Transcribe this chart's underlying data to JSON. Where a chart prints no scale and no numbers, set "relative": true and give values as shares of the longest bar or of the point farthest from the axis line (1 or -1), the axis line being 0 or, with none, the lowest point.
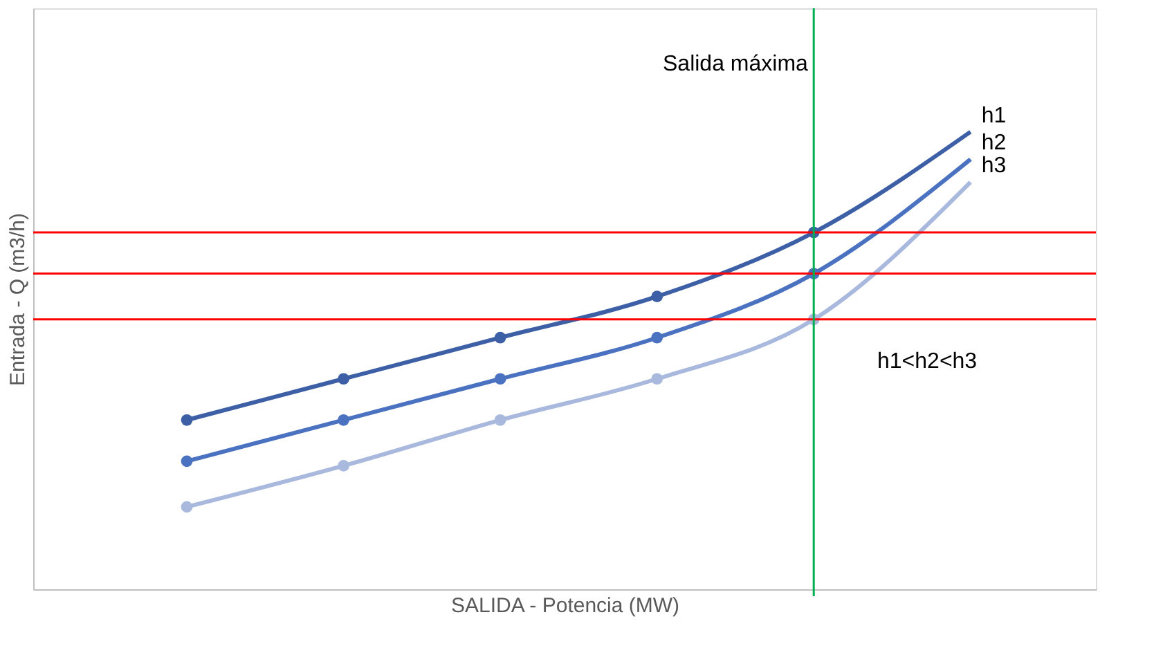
{
  "chart_data": {
    "type": "line",
    "relative": true,
    "xlabel": "SALIDA  - Potencia (MW)",
    "ylabel": "Entrada - Q (m3/h)",
    "categories": [
      null,
      null,
      null,
      null,
      null,
      null
    ],
    "series": [
      {
        "name": "h1",
        "color": "#3d5fa6",
        "values": [
          0.37,
          0.46,
          0.55,
          0.64,
          0.78,
          1.0
        ]
      },
      {
        "name": "h2",
        "color": "#4a72c0",
        "values": [
          0.28,
          0.37,
          0.46,
          0.55,
          0.69,
          0.94
        ]
      },
      {
        "name": "h3",
        "color": "#a9b9de",
        "values": [
          0.18,
          0.27,
          0.37,
          0.46,
          0.59,
          0.89
        ]
      }
    ],
    "marker": "circle",
    "line_style": "solid",
    "grid": false,
    "legend": false,
    "ref_lines": [
      {
        "axis": "y",
        "value": 0.78,
        "color": "#ff0000"
      },
      {
        "axis": "y",
        "value": 0.69,
        "color": "#ff0000"
      },
      {
        "axis": "y",
        "value": 0.59,
        "color": "#ff0000"
      }
    ],
    "annotations": [
      "Salida máxima",
      "h1<h2<h3"
    ]
  }
}
